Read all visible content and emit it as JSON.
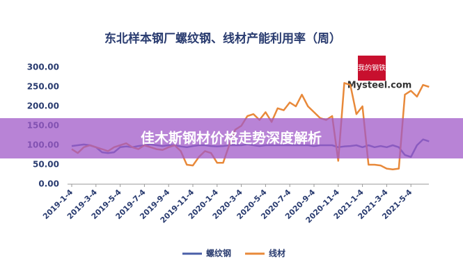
{
  "chart_data": {
    "type": "line",
    "title": "东北样本钢厂螺纹钢、线材产能利用率（周）",
    "watermark_logo": "我的钢铁",
    "watermark": "Mysteel.com",
    "banner": "佳木斯钢材价格走势深度解析",
    "categories": [
      "2019-1-4",
      null,
      null,
      null,
      "2019-3-4",
      null,
      null,
      null,
      "2019-5-4",
      null,
      null,
      null,
      "2019-7-4",
      null,
      null,
      null,
      "2019-9-4",
      null,
      null,
      null,
      "2019-11-4",
      null,
      null,
      null,
      "2020-1-4",
      null,
      null,
      null,
      "2020-3-4",
      null,
      null,
      null,
      "2020-5-4",
      null,
      null,
      null,
      "2020-7-4",
      null,
      null,
      null,
      "2020-9-4",
      null,
      null,
      null,
      "2020-11-4",
      null,
      null,
      null,
      "2021-1-4",
      null,
      null,
      null,
      "2021-3-4",
      null,
      null,
      null,
      "2021-5-4",
      null,
      null,
      null
    ],
    "series": [
      {
        "name": "螺纹钢",
        "color": "#4a5fa8",
        "values": [
          98,
          100,
          102,
          100,
          95,
          82,
          80,
          82,
          95,
          97,
          95,
          98,
          100,
          102,
          100,
          98,
          100,
          100,
          97,
          95,
          98,
          100,
          100,
          98,
          97,
          98,
          100,
          100,
          100,
          102,
          100,
          98,
          100,
          100,
          100,
          100,
          100,
          100,
          100,
          100,
          98,
          100,
          100,
          100,
          95,
          97,
          98,
          100,
          95,
          100,
          95,
          98,
          95,
          100,
          95,
          75,
          70,
          100,
          115,
          110
        ]
      },
      {
        "name": "线材",
        "color": "#e8893a",
        "values": [
          90,
          80,
          95,
          100,
          95,
          90,
          85,
          95,
          100,
          105,
          95,
          90,
          100,
          95,
          90,
          88,
          95,
          100,
          85,
          50,
          48,
          70,
          85,
          80,
          55,
          55,
          100,
          140,
          150,
          175,
          180,
          165,
          185,
          160,
          195,
          190,
          210,
          200,
          230,
          200,
          185,
          170,
          165,
          175,
          60,
          260,
          255,
          180,
          200,
          50,
          50,
          48,
          40,
          38,
          40,
          230,
          240,
          225,
          255,
          250
        ]
      }
    ],
    "ylim": [
      0,
      300
    ],
    "yticks": [
      {
        "value": 0,
        "label": "0.00"
      },
      {
        "value": 50,
        "label": "50.00"
      },
      {
        "value": 100,
        "label": "100.00"
      },
      {
        "value": 150,
        "label": "150.00"
      },
      {
        "value": 200,
        "label": "200.00"
      },
      {
        "value": 250,
        "label": "250.00"
      },
      {
        "value": 300,
        "label": "300.00"
      }
    ],
    "grid": false
  }
}
